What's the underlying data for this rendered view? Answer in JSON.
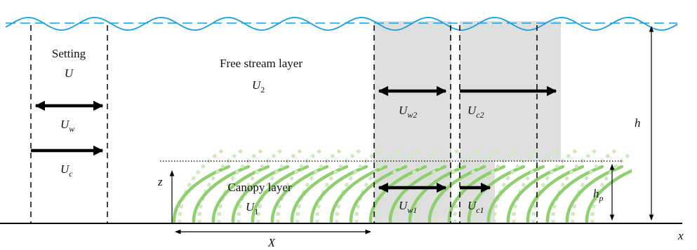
{
  "labels": {
    "setting": "Setting",
    "u": "U",
    "uw_base": "U",
    "uw_sub": "w",
    "uc_base": "U",
    "uc_sub": "c",
    "free_stream": "Free stream layer",
    "u2_base": "U",
    "u2_sub": "2",
    "uw2_base": "U",
    "uw2_sub": "w2",
    "uc2_base": "U",
    "uc2_sub": "c2",
    "h": "h",
    "z": "z",
    "canopy": "Canopy layer",
    "u1_base": "U",
    "u1_sub": "1",
    "uw1_base": "U",
    "uw1_sub": "w1",
    "uc1_base": "U",
    "uc1_sub": "c1",
    "hp_base": "h",
    "hp_sub": "p",
    "x_axis": "x",
    "X": "X"
  },
  "colors": {
    "wave": "#1a9fdc",
    "water_level": "#1a9fdc",
    "shade": "#d9d9d9",
    "canopy": "#8fcf6f",
    "canopy_faint": "#cfe8bf",
    "arrow": "#000000",
    "dashed": "#000000"
  }
}
